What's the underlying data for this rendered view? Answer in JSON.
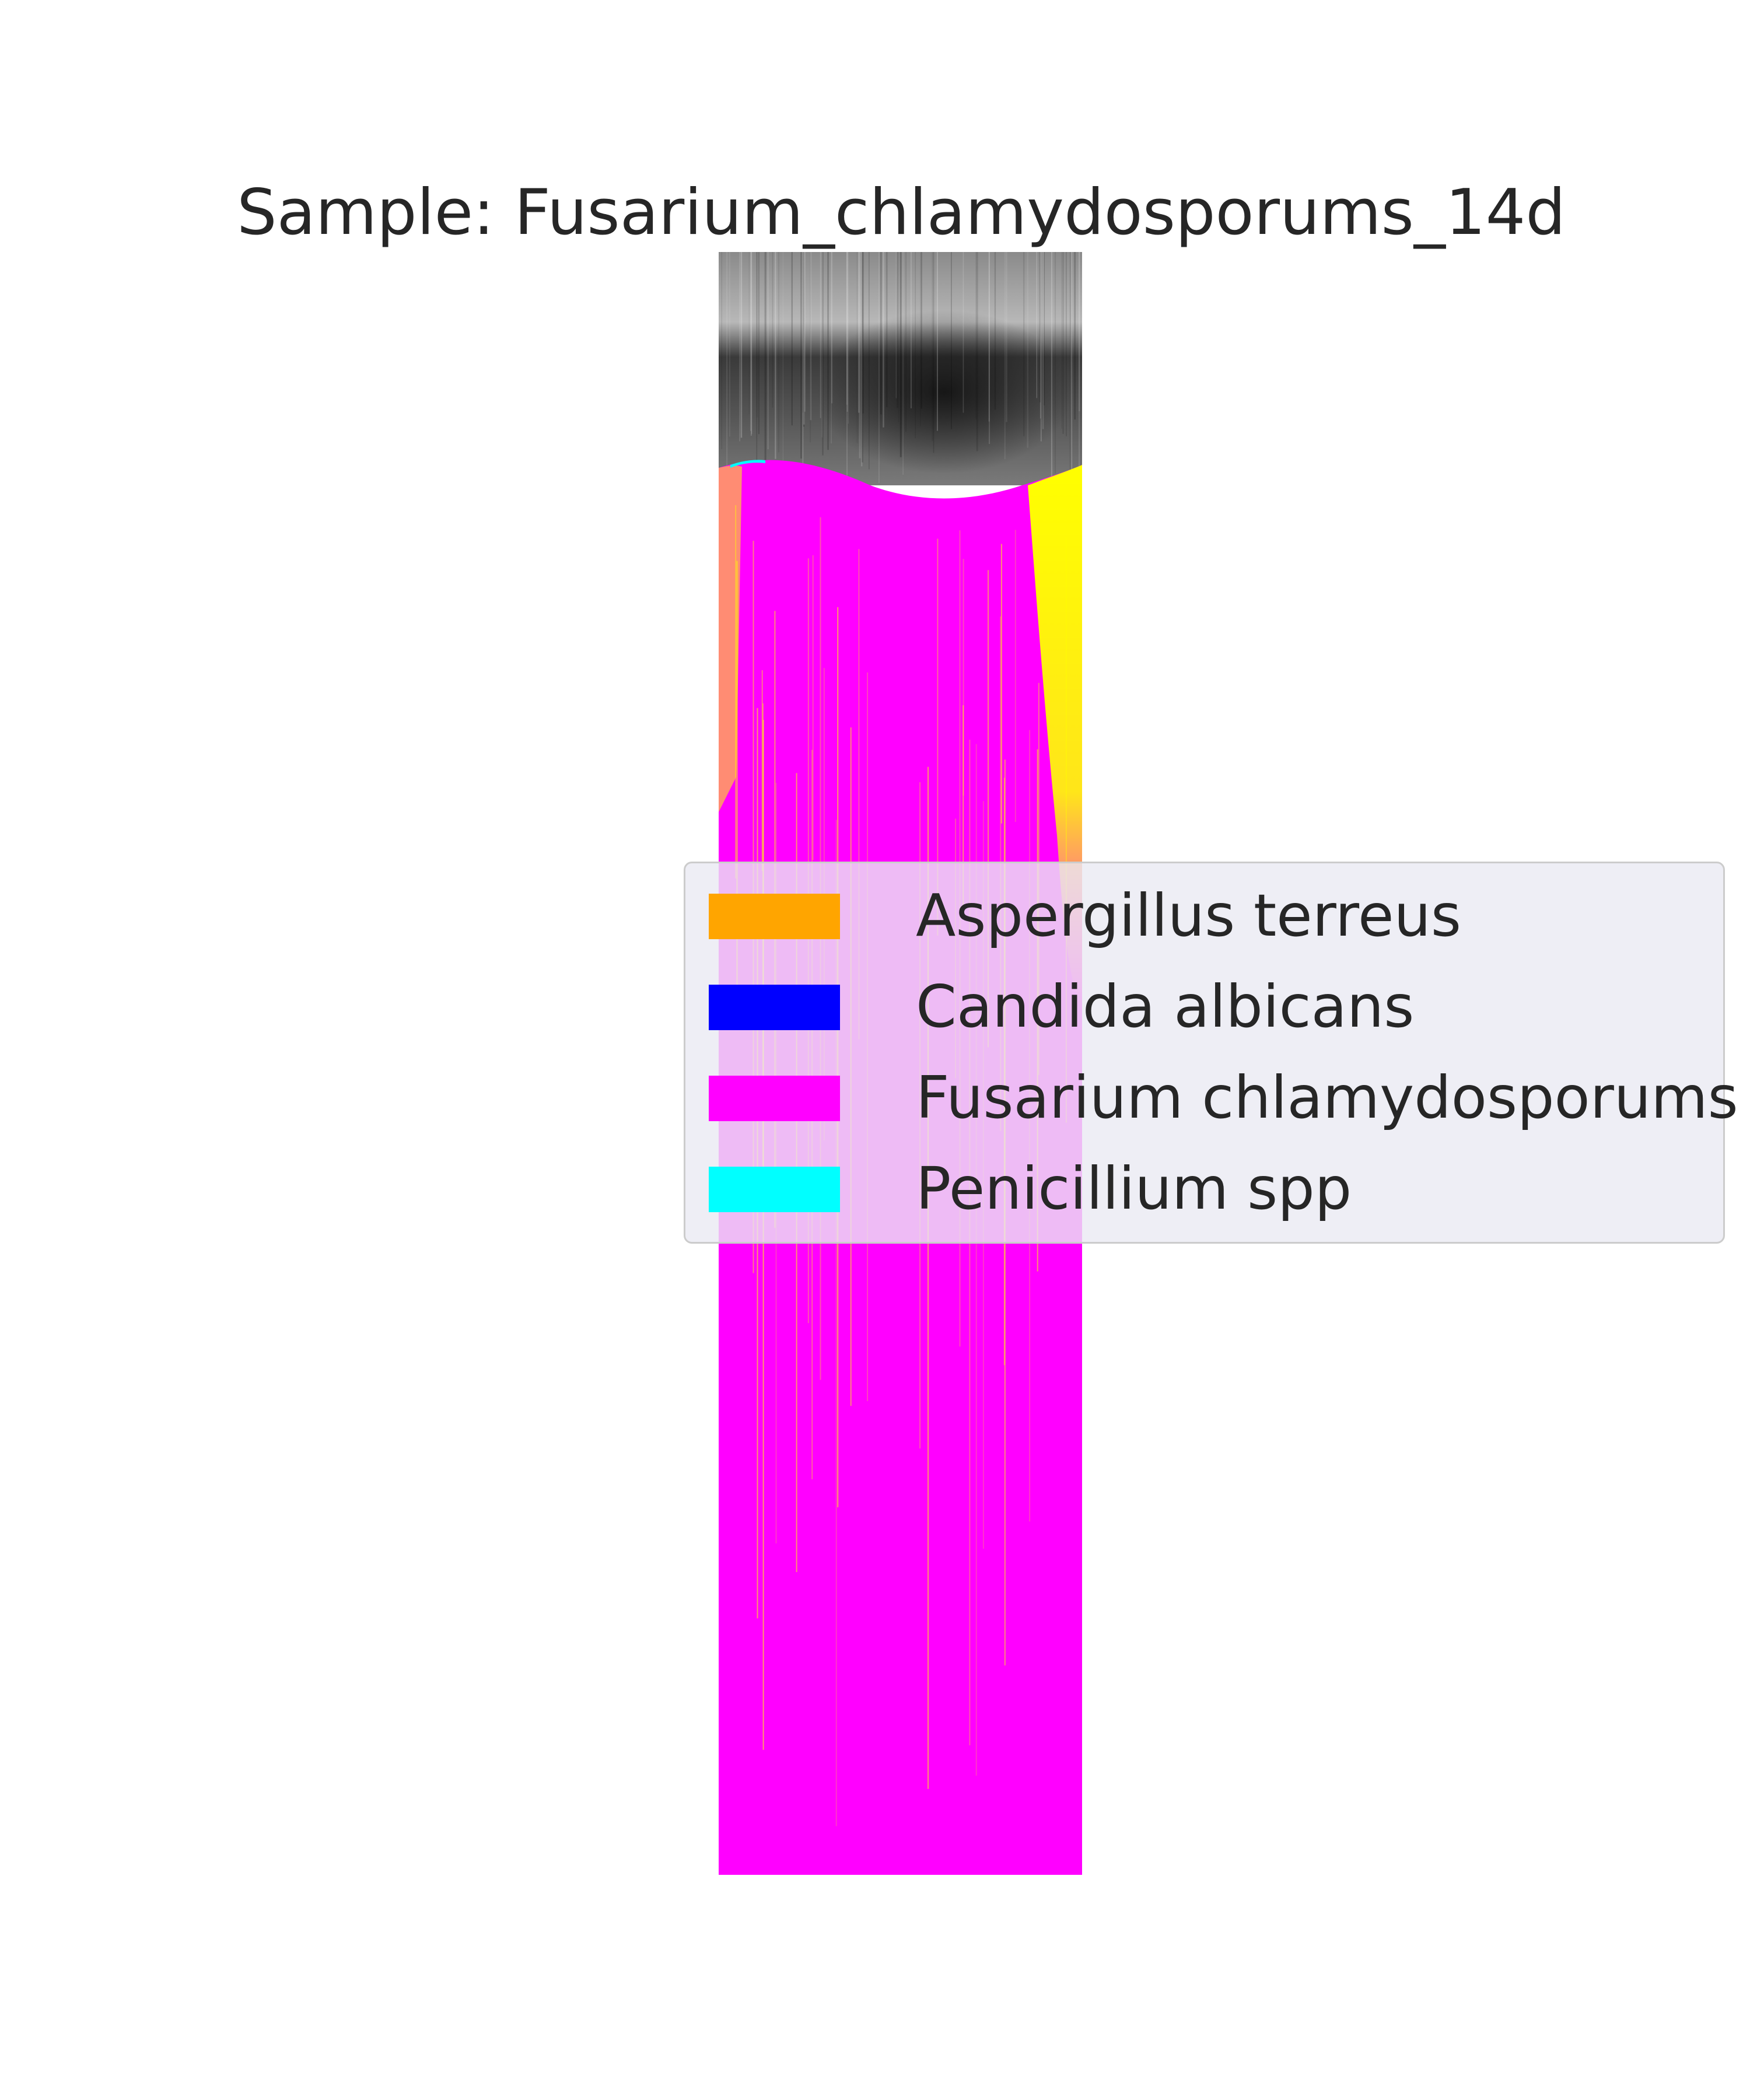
{
  "title": "Sample: Fusarium_chlamydosporums_14d",
  "chart_data": {
    "type": "heatmap",
    "title": "Sample: Fusarium_chlamydosporums_14d",
    "axes": "off",
    "grid": false,
    "background_image": "grayscale-tissue-scan",
    "overlay_classes": [
      {
        "name": "Aspergillus terreus",
        "color": "#ffa500",
        "dominance": "minor"
      },
      {
        "name": "Candida albicans",
        "color": "#0000ff",
        "dominance": "minor"
      },
      {
        "name": "Fusarium chlamydosporums",
        "color": "#ff00ff",
        "dominance": "major"
      },
      {
        "name": "Penicillium spp",
        "color": "#00ffff",
        "dominance": "trace"
      }
    ],
    "unlabeled_overlay_color": "#ffff00",
    "legend_position": "center-right"
  },
  "legend": {
    "items": [
      {
        "label": "Aspergillus terreus",
        "color": "#ffa500"
      },
      {
        "label": "Candida albicans",
        "color": "#0000ff"
      },
      {
        "label": "Fusarium chlamydosporums",
        "color": "#ff00ff"
      },
      {
        "label": "Penicillium spp",
        "color": "#00ffff"
      }
    ]
  }
}
